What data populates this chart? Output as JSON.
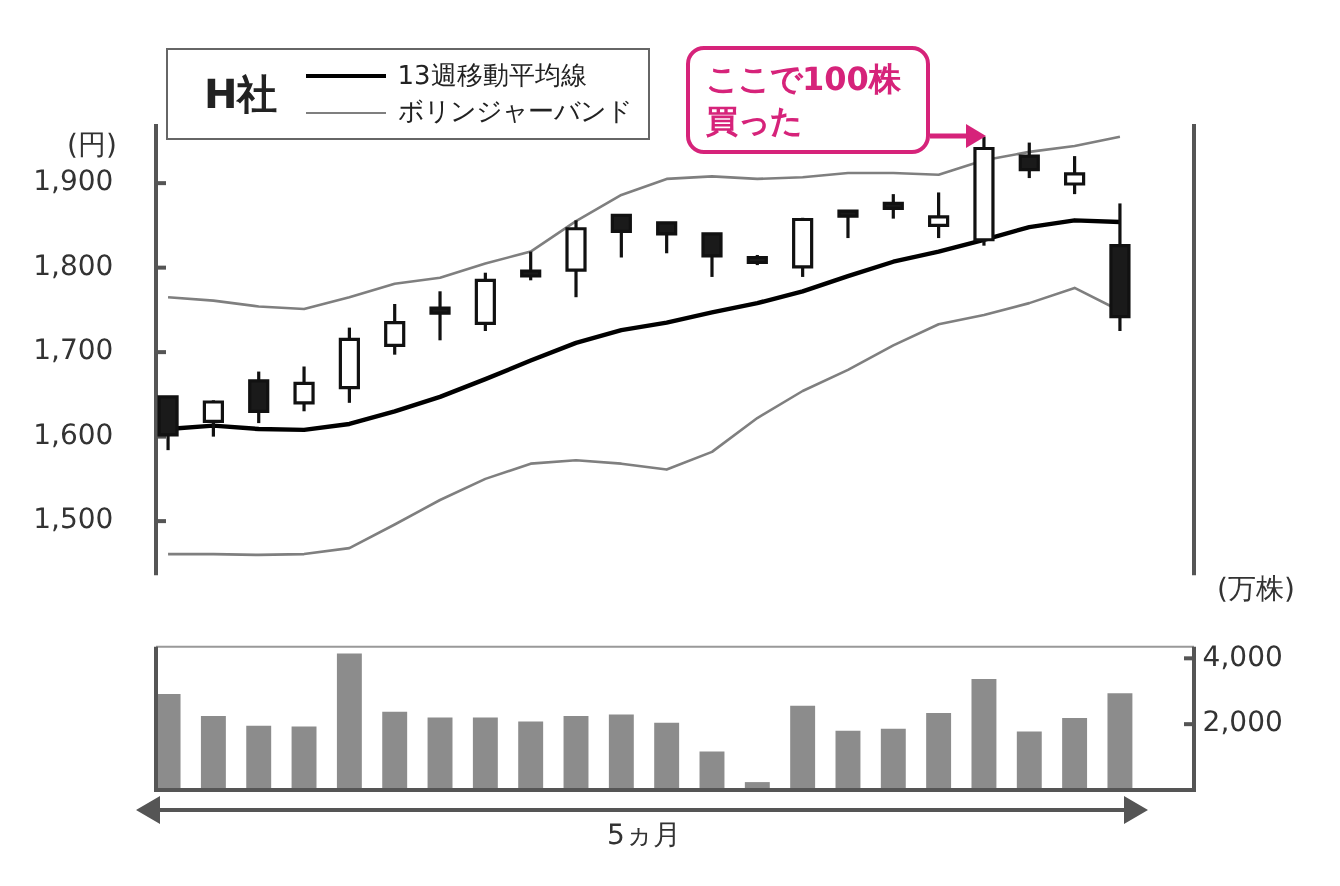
{
  "chart_data": [
    {
      "type": "candlestick",
      "legend_title": "H社",
      "ylabel": "(円)",
      "legend": "top left",
      "marker": "none",
      "categories": [
        null,
        null,
        null,
        null,
        null,
        null,
        null,
        null,
        null,
        null,
        null,
        null,
        null,
        null,
        null,
        null,
        null,
        null,
        null,
        null,
        null,
        null
      ],
      "ohlc": [
        [
          1647,
          1647,
          1584,
          1602
        ],
        [
          1618,
          1643,
          1600,
          1641
        ],
        [
          1666,
          1677,
          1616,
          1630
        ],
        [
          1640,
          1683,
          1630,
          1663
        ],
        [
          1658,
          1729,
          1640,
          1715
        ],
        [
          1708,
          1757,
          1697,
          1735
        ],
        [
          1752,
          1772,
          1714,
          1748
        ],
        [
          1734,
          1794,
          1725,
          1785
        ],
        [
          1796,
          1819,
          1785,
          1791
        ],
        [
          1797,
          1856,
          1765,
          1846
        ],
        [
          1862,
          1862,
          1812,
          1843
        ],
        [
          1853,
          1853,
          1817,
          1840
        ],
        [
          1840,
          1840,
          1789,
          1814
        ],
        [
          1812,
          1815,
          1803,
          1807
        ],
        [
          1801,
          1859,
          1789,
          1857
        ],
        [
          1867,
          1867,
          1835,
          1863
        ],
        [
          1876,
          1887,
          1858,
          1872
        ],
        [
          1850,
          1889,
          1835,
          1860
        ],
        [
          1833,
          1955,
          1826,
          1941
        ],
        [
          1932,
          1948,
          1906,
          1916
        ],
        [
          1899,
          1932,
          1887,
          1911
        ],
        [
          1826,
          1876,
          1725,
          1742
        ]
      ],
      "series": [
        {
          "name": "13週移動平均線",
          "type": "line",
          "color": "#000000",
          "values": [
            1609,
            1613,
            1609,
            1608,
            1615,
            1630,
            1647,
            1668,
            1690,
            1711,
            1726,
            1735,
            1747,
            1758,
            1772,
            1790,
            1807,
            1819,
            1833,
            1848,
            1856,
            1854
          ]
        },
        {
          "name": "ボリンジャーバンド",
          "type": "line",
          "color": "#7f7f7f",
          "values": [
            1765,
            1761,
            1754,
            1751,
            1765,
            1781,
            1788,
            1805,
            1819,
            1855,
            1886,
            1905,
            1908,
            1905,
            1907,
            1912,
            1912,
            1910,
            1927,
            1937,
            1944,
            1955
          ]
        },
        {
          "type": "line",
          "color": "#7f7f7f",
          "values": [
            1461,
            1461,
            1460,
            1461,
            1468,
            1496,
            1525,
            1550,
            1568,
            1572,
            1568,
            1561,
            1582,
            1622,
            1654,
            1679,
            1708,
            1733,
            1744,
            1758,
            1776,
            1749
          ]
        }
      ],
      "ylim": [
        1436,
        1970
      ],
      "yticks": [
        {
          "value": 1500,
          "label": "1,500"
        },
        {
          "value": 1600,
          "label": "1,600"
        },
        {
          "value": 1700,
          "label": "1,700"
        },
        {
          "value": 1800,
          "label": "1,800"
        },
        {
          "value": 1900,
          "label": "1,900"
        }
      ],
      "annotations": [
        "ここで100株買った"
      ]
    },
    {
      "type": "bar",
      "xlabel": "5ヵ月",
      "ylabel": "(万株)",
      "categories": [
        null,
        null,
        null,
        null,
        null,
        null,
        null,
        null,
        null,
        null,
        null,
        null,
        null,
        null,
        null,
        null,
        null,
        null,
        null,
        null,
        null,
        null
      ],
      "color": "#8c8c8c",
      "values": [
        2920,
        2250,
        1950,
        1930,
        4150,
        2380,
        2200,
        2200,
        2080,
        2250,
        2290,
        2040,
        1170,
        240,
        2560,
        1800,
        1860,
        2340,
        3370,
        1780,
        2190,
        2940
      ],
      "ylim": [
        0,
        4350
      ],
      "yticks": [
        {
          "value": 2000,
          "label": "2,000"
        },
        {
          "value": 4000,
          "label": "4,000"
        }
      ]
    }
  ]
}
